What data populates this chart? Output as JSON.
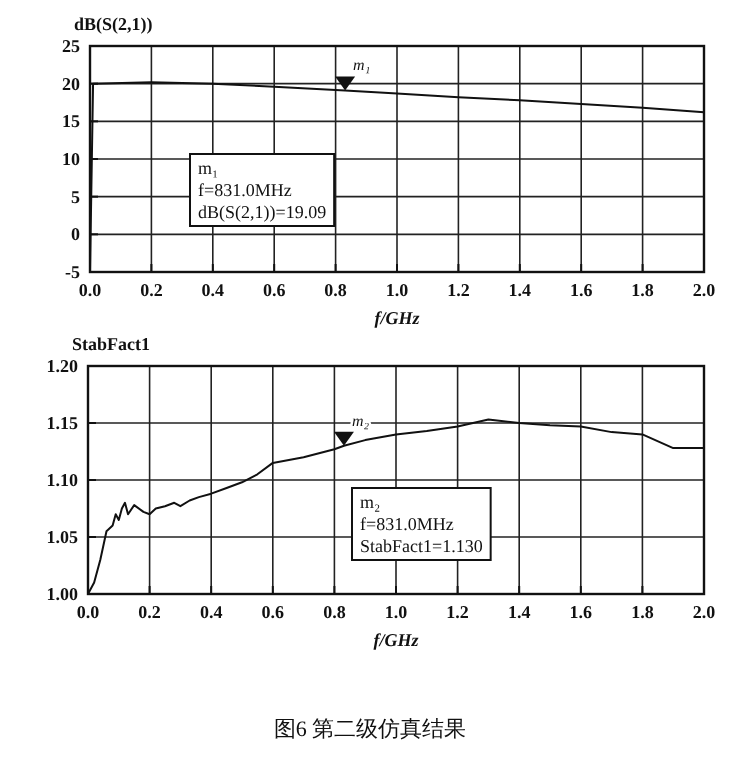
{
  "chart_data": [
    {
      "type": "line",
      "ylabel": "dB(S(2,1))",
      "xlabel": "f/GHz",
      "grid": true,
      "marker": "none",
      "line_style": "solid",
      "xlim": [
        0,
        2
      ],
      "ylim": [
        -5,
        25
      ],
      "xticks": [
        {
          "value": 0,
          "label": "0.0"
        },
        {
          "value": 0.2,
          "label": "0.2"
        },
        {
          "value": 0.4,
          "label": "0.4"
        },
        {
          "value": 0.6,
          "label": "0.6"
        },
        {
          "value": 0.8,
          "label": "0.8"
        },
        {
          "value": 1,
          "label": "1.0"
        },
        {
          "value": 1.2,
          "label": "1.2"
        },
        {
          "value": 1.4,
          "label": "1.4"
        },
        {
          "value": 1.6,
          "label": "1.6"
        },
        {
          "value": 1.8,
          "label": "1.8"
        },
        {
          "value": 2,
          "label": "2.0"
        }
      ],
      "yticks": [
        -5,
        0,
        5,
        10,
        15,
        20,
        25
      ],
      "series": [
        {
          "color": "#111111",
          "x": [
            0,
            0.01,
            0.2,
            0.4,
            0.6,
            0.831,
            1.0,
            1.2,
            1.4,
            1.6,
            1.8,
            2.0
          ],
          "values": [
            -5,
            20,
            20.2,
            20,
            19.6,
            19.1,
            18.7,
            18.2,
            17.8,
            17.3,
            16.8,
            16.2
          ]
        }
      ],
      "annotations": [
        {
          "text": "m₁",
          "x": 0.831,
          "y": 19.1
        },
        "m₁\nf=831.0MHz\ndB(S(2,1))=19.09"
      ]
    },
    {
      "type": "line",
      "ylabel": "StabFact1",
      "xlabel": "f/GHz",
      "grid": true,
      "marker": "none",
      "line_style": "solid",
      "xlim": [
        0,
        2
      ],
      "ylim": [
        1.0,
        1.2
      ],
      "xticks": [
        {
          "value": 0,
          "label": "0.0"
        },
        {
          "value": 0.2,
          "label": "0.2"
        },
        {
          "value": 0.4,
          "label": "0.4"
        },
        {
          "value": 0.6,
          "label": "0.6"
        },
        {
          "value": 0.8,
          "label": "0.8"
        },
        {
          "value": 1,
          "label": "1.0"
        },
        {
          "value": 1.2,
          "label": "1.2"
        },
        {
          "value": 1.4,
          "label": "1.4"
        },
        {
          "value": 1.6,
          "label": "1.6"
        },
        {
          "value": 1.8,
          "label": "1.8"
        },
        {
          "value": 2,
          "label": "2.0"
        }
      ],
      "yticks": [
        {
          "value": 1.0,
          "label": "1.00"
        },
        {
          "value": 1.05,
          "label": "1.05"
        },
        {
          "value": 1.1,
          "label": "1.10"
        },
        {
          "value": 1.15,
          "label": "1.15"
        },
        {
          "value": 1.2,
          "label": "1.20"
        }
      ],
      "series": [
        {
          "color": "#111111",
          "x": [
            0,
            0.02,
            0.04,
            0.06,
            0.08,
            0.09,
            0.1,
            0.11,
            0.12,
            0.13,
            0.15,
            0.18,
            0.2,
            0.22,
            0.25,
            0.28,
            0.3,
            0.33,
            0.36,
            0.4,
            0.45,
            0.5,
            0.55,
            0.6,
            0.7,
            0.8,
            0.831,
            0.9,
            1.0,
            1.1,
            1.2,
            1.3,
            1.4,
            1.5,
            1.6,
            1.7,
            1.8,
            1.9,
            2.0
          ],
          "values": [
            1.0,
            1.01,
            1.03,
            1.055,
            1.06,
            1.07,
            1.065,
            1.075,
            1.08,
            1.07,
            1.078,
            1.072,
            1.07,
            1.075,
            1.077,
            1.08,
            1.077,
            1.082,
            1.085,
            1.088,
            1.093,
            1.098,
            1.105,
            1.115,
            1.12,
            1.127,
            1.13,
            1.135,
            1.14,
            1.143,
            1.147,
            1.153,
            1.15,
            1.148,
            1.147,
            1.142,
            1.14,
            1.128,
            1.128
          ]
        }
      ],
      "annotations": [
        {
          "text": "m₂",
          "x": 0.831,
          "y": 1.13
        },
        "m₂\nf=831.0MHz\nStabFact1=1.130",
        "图6   第二级仿真结果"
      ]
    }
  ]
}
